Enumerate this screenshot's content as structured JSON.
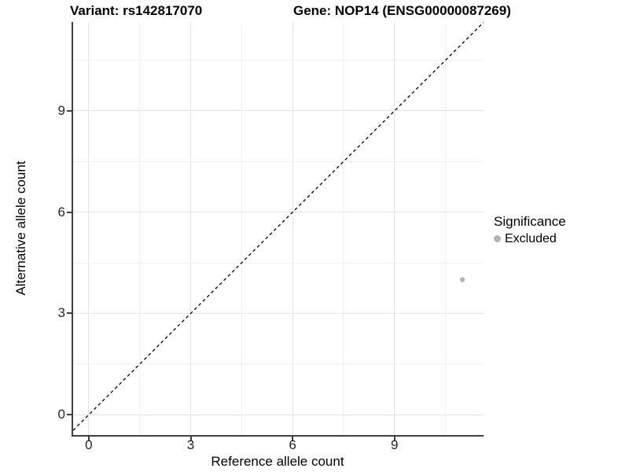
{
  "chart_data": {
    "type": "scatter",
    "title_left": "Variant: rs142817070",
    "title_right": "Gene: NOP14 (ENSG00000087269)",
    "xlabel": "Reference allele count",
    "ylabel": "Alternative allele count",
    "xlim": [
      -0.46,
      11.62
    ],
    "ylim": [
      -0.6,
      11.63
    ],
    "x_ticks": [
      0,
      3,
      6,
      9
    ],
    "y_ticks": [
      0,
      3,
      6,
      9
    ],
    "x_minor_ticks": [
      1.5,
      4.5,
      7.5,
      10.5
    ],
    "y_minor_ticks": [
      1.5,
      4.5,
      7.5,
      10.5
    ],
    "grid": true,
    "legend_position": "right",
    "reference_line": {
      "kind": "identity",
      "equation": "y = x",
      "style": "dashed",
      "color": "#000000"
    },
    "series": [
      {
        "name": "Excluded",
        "color": "#b4b4b4",
        "points": [
          {
            "x": 11,
            "y": 4
          }
        ]
      }
    ],
    "legend": {
      "title": "Significance",
      "items": [
        {
          "label": "Excluded",
          "color": "#b4b4b4"
        }
      ]
    },
    "style": {
      "background": "#ffffff",
      "axis_line": "#404040",
      "tick_label_color": "#262626",
      "grid_major": "#e4e4e4",
      "grid_minor": "#f1f1f1",
      "point_color": "#b4b4b4"
    }
  }
}
